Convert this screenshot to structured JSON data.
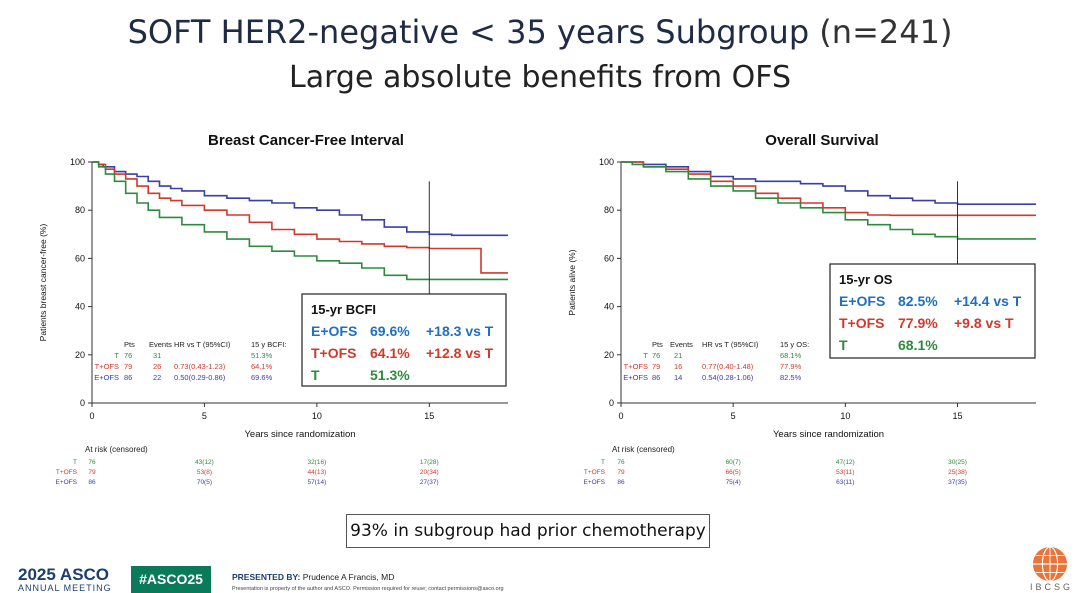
{
  "slide": {
    "title": "SOFT HER2-negative < 35 years Subgroup",
    "title_n": "(n=241)",
    "subtitle": "Large absolute benefits from OFS",
    "footnote": "93% in subgroup had prior chemotherapy"
  },
  "footer": {
    "asco_year": "2025 ASCO",
    "asco_sub": "ANNUAL MEETING",
    "hashtag": "#ASCO25",
    "presented_label": "PRESENTED BY:",
    "presenter": "Prudence A Francis, MD",
    "disclaimer": "Presentation is property of the author and ASCO. Permission required for reuse; contact permissions@asco.org",
    "org": "IBCSG"
  },
  "colors": {
    "T": "#2e8b3e",
    "T+OFS": "#d03a2c",
    "E+OFS": "#3a3fa8",
    "title": "#1f2a44"
  },
  "chart_data": [
    {
      "type": "line",
      "step": true,
      "title": "Breast Cancer-Free Interval",
      "xlabel": "Years since randomization",
      "ylabel": "Patients breast cancer-free (%)",
      "xlim": [
        0,
        18.5
      ],
      "ylim": [
        0,
        100
      ],
      "xticks": [
        0,
        5,
        10,
        15
      ],
      "yticks": [
        0,
        20,
        40,
        60,
        80,
        100
      ],
      "reference_x": 15,
      "series": [
        {
          "name": "E+OFS",
          "color": "#3a3fa8",
          "x": [
            0,
            0.3,
            0.5,
            1,
            1.5,
            2,
            2.5,
            3,
            3.5,
            4,
            4.5,
            5,
            6,
            7,
            8,
            9,
            10,
            11,
            12,
            13,
            14,
            15,
            16,
            17,
            18.5
          ],
          "y": [
            100,
            99,
            98,
            96,
            95,
            94,
            92,
            90,
            89,
            88,
            88,
            86,
            85,
            84,
            83,
            81,
            80,
            78,
            76,
            73,
            71,
            70,
            69.6,
            69.6,
            69.6
          ]
        },
        {
          "name": "T+OFS",
          "color": "#d03a2c",
          "x": [
            0,
            0.3,
            0.6,
            1,
            1.5,
            2,
            2.5,
            3,
            3.5,
            4,
            5,
            6,
            7,
            8,
            9,
            10,
            11,
            12,
            13,
            14,
            15,
            16,
            17,
            17.3,
            18.5
          ],
          "y": [
            100,
            99,
            97,
            95,
            93,
            90,
            87,
            85,
            84,
            82,
            80,
            78,
            75,
            72,
            70,
            68,
            67,
            66,
            65,
            64.5,
            64.1,
            64.1,
            64.1,
            54,
            54
          ]
        },
        {
          "name": "T",
          "color": "#2e8b3e",
          "x": [
            0,
            0.3,
            0.6,
            1,
            1.5,
            2,
            2.5,
            3,
            4,
            5,
            6,
            7,
            8,
            9,
            10,
            11,
            12,
            13,
            14,
            15,
            16,
            17,
            18.5
          ],
          "y": [
            100,
            98,
            95,
            92,
            87,
            83,
            80,
            77,
            74,
            71,
            68,
            65,
            63,
            61,
            59,
            58,
            56,
            53,
            51.3,
            51.3,
            51.3,
            51.3,
            51.3
          ]
        }
      ],
      "inline_table": {
        "headers": [
          "Pts",
          "Events",
          "HR vs T (95%CI)",
          "15 y BCFI:"
        ],
        "rows": [
          {
            "group": "T",
            "pts": "76",
            "events": "31",
            "hr": "",
            "rate": "51.3%",
            "color": "#2e8b3e"
          },
          {
            "group": "T+OFS",
            "pts": "79",
            "events": "26",
            "hr": "0.73(0.43-1.23)",
            "rate": "64.1%",
            "color": "#d03a2c"
          },
          {
            "group": "E+OFS",
            "pts": "86",
            "events": "22",
            "hr": "0.50(0.29-0.86)",
            "rate": "69.6%",
            "color": "#3a3fa8"
          }
        ]
      },
      "summary_box": {
        "heading": "15-yr BCFI",
        "rows": [
          {
            "group": "E+OFS",
            "value": "69.6%",
            "diff": "+18.3 vs T",
            "color": "#1f6fbf"
          },
          {
            "group": "T+OFS",
            "value": "64.1%",
            "diff": "+12.8 vs T",
            "color": "#d03a2c"
          },
          {
            "group": "T",
            "value": "51.3%",
            "diff": "",
            "color": "#2e8b3e"
          }
        ]
      },
      "at_risk": {
        "label": "At risk (censored)",
        "rows": [
          {
            "group": "T",
            "color": "#2e8b3e",
            "values": [
              "76",
              "43(12)",
              "32(16)",
              "17(28)"
            ]
          },
          {
            "group": "T+OFS",
            "color": "#d03a2c",
            "values": [
              "79",
              "53(8)",
              "44(13)",
              "20(34)"
            ]
          },
          {
            "group": "E+OFS",
            "color": "#3a3fa8",
            "values": [
              "86",
              "70(5)",
              "57(14)",
              "27(37)"
            ]
          }
        ]
      }
    },
    {
      "type": "line",
      "step": true,
      "title": "Overall Survival",
      "xlabel": "Years since randomization",
      "ylabel": "Patients alive (%)",
      "xlim": [
        0,
        18.5
      ],
      "ylim": [
        0,
        100
      ],
      "xticks": [
        0,
        5,
        10,
        15
      ],
      "yticks": [
        0,
        20,
        40,
        60,
        80,
        100
      ],
      "reference_x": 15,
      "series": [
        {
          "name": "E+OFS",
          "color": "#3a3fa8",
          "x": [
            0,
            0.5,
            1,
            2,
            3,
            4,
            5,
            6,
            7,
            8,
            9,
            10,
            11,
            12,
            13,
            14,
            15,
            16,
            17,
            18.5
          ],
          "y": [
            100,
            100,
            99,
            98,
            96,
            94,
            93,
            92,
            92,
            91,
            90,
            88,
            86,
            85,
            84,
            83,
            82.5,
            82.5,
            82.5,
            82.5
          ]
        },
        {
          "name": "T+OFS",
          "color": "#d03a2c",
          "x": [
            0,
            0.5,
            1,
            2,
            3,
            4,
            5,
            6,
            7,
            8,
            9,
            10,
            11,
            12,
            13,
            14,
            15,
            16,
            17,
            18.5
          ],
          "y": [
            100,
            100,
            98,
            97,
            95,
            92,
            90,
            87,
            85,
            83,
            81,
            79,
            78,
            77.9,
            77.9,
            77.9,
            77.9,
            77.9,
            77.9,
            77.9
          ]
        },
        {
          "name": "T",
          "color": "#2e8b3e",
          "x": [
            0,
            0.5,
            1,
            2,
            3,
            4,
            5,
            6,
            7,
            8,
            9,
            10,
            11,
            12,
            13,
            14,
            15,
            16,
            17,
            18.5
          ],
          "y": [
            100,
            99,
            98,
            96,
            93,
            90,
            88,
            85,
            83,
            81,
            79,
            76,
            74,
            72,
            70,
            69,
            68.1,
            68.1,
            68.1,
            68.1
          ]
        }
      ],
      "inline_table": {
        "headers": [
          "Pts",
          "Events",
          "HR vs T (95%CI)",
          "15 y OS:"
        ],
        "rows": [
          {
            "group": "T",
            "pts": "76",
            "events": "21",
            "hr": "",
            "rate": "68.1%",
            "color": "#2e8b3e"
          },
          {
            "group": "T+OFS",
            "pts": "79",
            "events": "16",
            "hr": "0.77(0.40-1.48)",
            "rate": "77.9%",
            "color": "#d03a2c"
          },
          {
            "group": "E+OFS",
            "pts": "86",
            "events": "14",
            "hr": "0.54(0.28-1.06)",
            "rate": "82.5%",
            "color": "#3a3fa8"
          }
        ]
      },
      "summary_box": {
        "heading": "15-yr OS",
        "rows": [
          {
            "group": "E+OFS",
            "value": "82.5%",
            "diff": "+14.4 vs T",
            "color": "#1f6fbf"
          },
          {
            "group": "T+OFS",
            "value": "77.9%",
            "diff": "+9.8 vs T",
            "color": "#d03a2c"
          },
          {
            "group": "T",
            "value": "68.1%",
            "diff": "",
            "color": "#2e8b3e"
          }
        ]
      },
      "at_risk": {
        "label": "At risk (censored)",
        "rows": [
          {
            "group": "T",
            "color": "#2e8b3e",
            "values": [
              "76",
              "60(7)",
              "47(12)",
              "30(25)"
            ]
          },
          {
            "group": "T+OFS",
            "color": "#d03a2c",
            "values": [
              "79",
              "66(5)",
              "53(11)",
              "25(38)"
            ]
          },
          {
            "group": "E+OFS",
            "color": "#3a3fa8",
            "values": [
              "86",
              "75(4)",
              "63(11)",
              "37(35)"
            ]
          }
        ]
      }
    }
  ]
}
